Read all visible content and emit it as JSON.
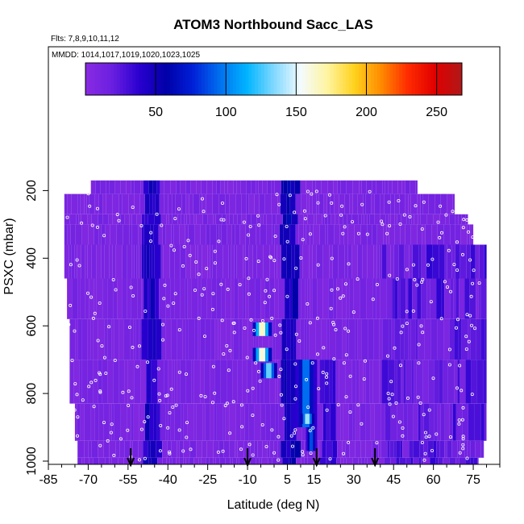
{
  "chart_data": {
    "type": "heatmap",
    "title": "ATOM3 Northbound Sacc_LAS",
    "subtitle": "Flts: 7,8,9,10,11,12",
    "annotation": "MMDD: 1014,1017,1019,1020,1023,1025",
    "xlabel": "Latitude (deg N)",
    "ylabel": "PSXC (mbar)",
    "xlim": [
      -85,
      85
    ],
    "ylim": [
      1000,
      0
    ],
    "x_tick_labels": [
      "-85",
      "-70",
      "-55",
      "-40",
      "-25",
      "-10",
      "5",
      "15",
      "30",
      "45",
      "60",
      "75"
    ],
    "x_tick_values": [
      -85,
      -70,
      -55,
      -40,
      -25,
      -10,
      5,
      15,
      30,
      45,
      60,
      75
    ],
    "y_tick_labels": [
      "200",
      "400",
      "600",
      "800",
      "1000"
    ],
    "y_tick_values": [
      200,
      400,
      600,
      800,
      1000
    ],
    "colorbar": {
      "range": [
        0,
        268
      ],
      "tick_labels": [
        "50",
        "100",
        "150",
        "200",
        "250"
      ],
      "tick_values": [
        50,
        100,
        150,
        200,
        250
      ],
      "colors": [
        "#8a2be2",
        "#6a1fe0",
        "#2a00d0",
        "#0000a8",
        "#0020d8",
        "#0070f0",
        "#00b4ff",
        "#7fd8ff",
        "#f4fbff",
        "#fff4a0",
        "#ffd21e",
        "#ff8a00",
        "#ff2a00",
        "#e00000",
        "#b01818"
      ]
    },
    "background_value": 5,
    "high_value_patches": [
      {
        "lat": [
          -8,
          -1
        ],
        "p": [
          590,
          630
        ],
        "value": 190
      },
      {
        "lat": [
          -8,
          -1
        ],
        "p": [
          665,
          705
        ],
        "value": 185
      },
      {
        "lat": [
          -5,
          1
        ],
        "p": [
          710,
          755
        ],
        "value": 150
      },
      {
        "lat": [
          8,
          16
        ],
        "p": [
          700,
          900
        ],
        "value": 110
      },
      {
        "lat": [
          10,
          15
        ],
        "p": [
          860,
          890
        ],
        "value": 160
      },
      {
        "lat": [
          12,
          16
        ],
        "p": [
          900,
          970
        ],
        "value": 100
      }
    ],
    "arrow_markers_lat": [
      -54,
      -10,
      16,
      38
    ],
    "series": []
  }
}
